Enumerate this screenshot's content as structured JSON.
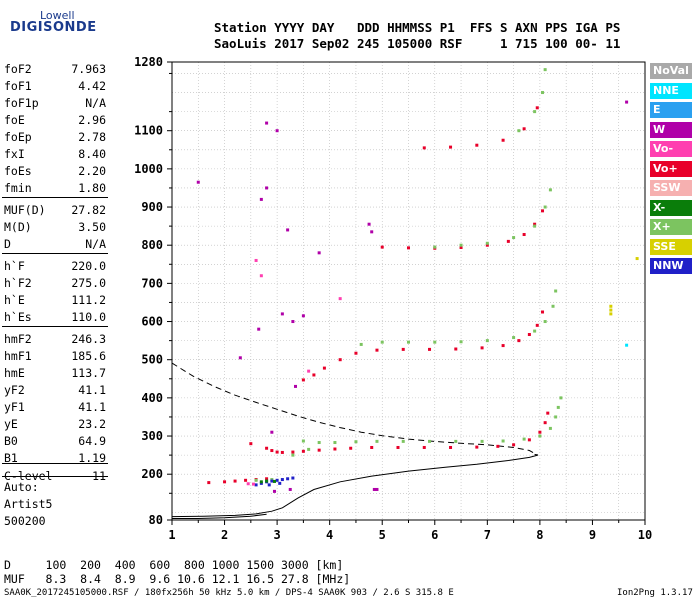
{
  "logo": {
    "lowell": "Lowell",
    "digisonde": "DIGISONDE"
  },
  "header": {
    "line1": "Station YYYY DAY   DDD HHMMSS P1  FFS S AXN PPS IGA PS",
    "line2": "SaoLuis 2017 Sep02 245 105000 RSF     1 715 100 00- 11"
  },
  "params": [
    {
      "name": "foF2",
      "value": "7.963"
    },
    {
      "name": "foF1",
      "value": "4.42"
    },
    {
      "name": "foF1p",
      "value": "N/A"
    },
    {
      "name": "foE",
      "value": "2.96"
    },
    {
      "name": "foEp",
      "value": "2.78"
    },
    {
      "name": "fxI",
      "value": "8.40"
    },
    {
      "name": "foEs",
      "value": "2.20"
    },
    {
      "name": "fmin",
      "value": "1.80"
    },
    {
      "name": "MUF(D)",
      "value": "27.82"
    },
    {
      "name": "M(D)",
      "value": "3.50"
    },
    {
      "name": "D",
      "value": "N/A"
    },
    {
      "name": "h`F",
      "value": "220.0"
    },
    {
      "name": "h`F2",
      "value": "275.0"
    },
    {
      "name": "h`E",
      "value": "111.2"
    },
    {
      "name": "h`Es",
      "value": "110.0"
    },
    {
      "name": "hmF2",
      "value": "246.3"
    },
    {
      "name": "hmF1",
      "value": "185.6"
    },
    {
      "name": "hmE",
      "value": "113.7"
    },
    {
      "name": "yF2",
      "value": "41.1"
    },
    {
      "name": "yF1",
      "value": "41.1"
    },
    {
      "name": "yE",
      "value": "23.2"
    },
    {
      "name": "B0",
      "value": "64.9"
    },
    {
      "name": "B1",
      "value": "1.19"
    },
    {
      "name": "C-level",
      "value": "11"
    }
  ],
  "auto": {
    "label": "Auto:",
    "artist": "Artist5",
    "version": "500200"
  },
  "legend": [
    {
      "label": "NoVal",
      "color": "#a9a9a9"
    },
    {
      "label": "NNE",
      "color": "#00e5ff"
    },
    {
      "label": "E",
      "color": "#2aa0f0"
    },
    {
      "label": "W",
      "color": "#b000a8"
    },
    {
      "label": "Vo-",
      "color": "#ff3fb0"
    },
    {
      "label": "Vo+",
      "color": "#e8002a"
    },
    {
      "label": "SSW",
      "color": "#f6b0b0"
    },
    {
      "label": "X-",
      "color": "#0a7d0a"
    },
    {
      "label": "X+",
      "color": "#7cc460"
    },
    {
      "label": "SSE",
      "color": "#d7d000"
    },
    {
      "label": "NNW",
      "color": "#2020c8"
    }
  ],
  "muf_table": {
    "row_d": "D     100  200  400  600  800 1000 1500 3000 [km]",
    "row_muf": "MUF   8.3  8.4  8.9  9.6 10.6 12.1 16.5 27.8 [MHz]"
  },
  "footer": {
    "left": "SAA0K_2017245105000.RSF / 180fx256h 50 kHz 5.0 km / DPS-4 SAA0K 903 / 2.6 S 315.8 E",
    "right": "Ion2Png 1.3.17"
  },
  "chart_data": {
    "type": "scatter",
    "xlabel": "",
    "ylabel": "",
    "xlim": [
      1,
      10
    ],
    "ylim": [
      80,
      1280
    ],
    "xticks": [
      "1",
      "2",
      "3",
      "4",
      "5",
      "6",
      "7",
      "8",
      "9",
      "10"
    ],
    "yticks": [
      "80",
      "200",
      "300",
      "400",
      "500",
      "600",
      "700",
      "800",
      "900",
      "1000",
      "1100",
      "1280"
    ],
    "grid": true,
    "legend_position": "right",
    "series": [
      {
        "name": "Vo+",
        "color": "#e8002a",
        "points": [
          [
            2.5,
            280
          ],
          [
            2.8,
            268
          ],
          [
            2.9,
            262
          ],
          [
            3.0,
            258
          ],
          [
            3.1,
            257
          ],
          [
            3.3,
            258
          ],
          [
            3.5,
            260
          ],
          [
            3.8,
            263
          ],
          [
            4.1,
            266
          ],
          [
            4.4,
            268
          ],
          [
            4.8,
            270
          ],
          [
            5.3,
            270
          ],
          [
            5.8,
            270
          ],
          [
            6.3,
            270
          ],
          [
            6.8,
            271
          ],
          [
            7.2,
            273
          ],
          [
            7.5,
            277
          ],
          [
            7.8,
            290
          ],
          [
            8.0,
            310
          ],
          [
            8.1,
            335
          ],
          [
            8.15,
            360
          ],
          [
            3.5,
            447
          ],
          [
            3.7,
            460
          ],
          [
            3.9,
            478
          ],
          [
            4.2,
            500
          ],
          [
            4.5,
            517
          ],
          [
            4.9,
            525
          ],
          [
            5.4,
            527
          ],
          [
            5.9,
            527
          ],
          [
            6.4,
            528
          ],
          [
            6.9,
            531
          ],
          [
            7.3,
            537
          ],
          [
            7.6,
            550
          ],
          [
            7.8,
            566
          ],
          [
            7.95,
            590
          ],
          [
            8.05,
            625
          ],
          [
            5.0,
            795
          ],
          [
            5.5,
            793
          ],
          [
            6.0,
            792
          ],
          [
            6.5,
            794
          ],
          [
            7.0,
            800
          ],
          [
            7.4,
            810
          ],
          [
            7.7,
            828
          ],
          [
            7.9,
            855
          ],
          [
            8.05,
            890
          ],
          [
            5.8,
            1055
          ],
          [
            6.3,
            1057
          ],
          [
            6.8,
            1062
          ],
          [
            7.3,
            1075
          ],
          [
            7.7,
            1105
          ],
          [
            7.95,
            1160
          ],
          [
            2.0,
            180
          ],
          [
            2.2,
            182
          ],
          [
            2.4,
            184
          ],
          [
            2.6,
            186
          ],
          [
            2.8,
            188
          ],
          [
            1.7,
            178
          ]
        ]
      },
      {
        "name": "X+",
        "color": "#7cc460",
        "points": [
          [
            3.5,
            287
          ],
          [
            3.8,
            283
          ],
          [
            4.1,
            283
          ],
          [
            4.5,
            285
          ],
          [
            4.9,
            286
          ],
          [
            5.4,
            286
          ],
          [
            5.9,
            286
          ],
          [
            6.4,
            286
          ],
          [
            6.9,
            286
          ],
          [
            7.3,
            287
          ],
          [
            7.7,
            292
          ],
          [
            8.0,
            300
          ],
          [
            8.2,
            320
          ],
          [
            8.3,
            350
          ],
          [
            8.35,
            375
          ],
          [
            8.4,
            400
          ],
          [
            4.6,
            540
          ],
          [
            5.0,
            546
          ],
          [
            5.5,
            546
          ],
          [
            6.0,
            546
          ],
          [
            6.5,
            547
          ],
          [
            7.0,
            550
          ],
          [
            7.5,
            558
          ],
          [
            7.9,
            575
          ],
          [
            8.1,
            600
          ],
          [
            8.25,
            640
          ],
          [
            8.3,
            680
          ],
          [
            6.0,
            795
          ],
          [
            6.5,
            800
          ],
          [
            7.0,
            805
          ],
          [
            7.5,
            820
          ],
          [
            7.9,
            850
          ],
          [
            8.1,
            900
          ],
          [
            8.2,
            945
          ],
          [
            7.6,
            1100
          ],
          [
            7.9,
            1150
          ],
          [
            8.05,
            1200
          ],
          [
            8.1,
            1260
          ],
          [
            2.6,
            184
          ],
          [
            2.9,
            186
          ],
          [
            3.3,
            250
          ],
          [
            3.6,
            265
          ]
        ]
      },
      {
        "name": "W",
        "color": "#b000a8",
        "points": [
          [
            2.8,
            1120
          ],
          [
            3.0,
            1100
          ],
          [
            3.2,
            840
          ],
          [
            2.7,
            920
          ],
          [
            2.8,
            950
          ],
          [
            1.5,
            965
          ],
          [
            3.35,
            430
          ],
          [
            3.5,
            615
          ],
          [
            2.3,
            505
          ],
          [
            3.1,
            620
          ],
          [
            3.3,
            600
          ],
          [
            2.65,
            580
          ],
          [
            3.8,
            780
          ],
          [
            9.65,
            1175
          ],
          [
            4.75,
            855
          ],
          [
            4.8,
            835
          ],
          [
            4.85,
            160
          ],
          [
            4.9,
            160
          ],
          [
            3.25,
            160
          ],
          [
            2.95,
            155
          ],
          [
            2.9,
            310
          ]
        ]
      },
      {
        "name": "NNW",
        "color": "#2020c8",
        "points": [
          [
            2.6,
            172
          ],
          [
            2.7,
            176
          ],
          [
            2.8,
            180
          ],
          [
            2.9,
            182
          ],
          [
            3.0,
            184
          ],
          [
            3.1,
            186
          ],
          [
            3.2,
            188
          ],
          [
            3.3,
            190
          ],
          [
            2.85,
            172
          ],
          [
            3.05,
            176
          ]
        ]
      },
      {
        "name": "Vo-",
        "color": "#ff3fb0",
        "points": [
          [
            2.7,
            720
          ],
          [
            2.6,
            760
          ],
          [
            4.2,
            660
          ],
          [
            3.6,
            470
          ],
          [
            2.45,
            175
          ],
          [
            2.55,
            174
          ]
        ]
      },
      {
        "name": "SSE",
        "color": "#d7d000",
        "points": [
          [
            9.35,
            620
          ],
          [
            9.35,
            630
          ],
          [
            9.35,
            640
          ],
          [
            9.85,
            765
          ]
        ]
      },
      {
        "name": "NNE",
        "color": "#00e5ff",
        "points": [
          [
            9.65,
            538
          ]
        ]
      },
      {
        "name": "X-",
        "color": "#0a7d0a",
        "points": [
          [
            2.7,
            180
          ],
          [
            2.8,
            182
          ],
          [
            2.95,
            181
          ]
        ]
      }
    ],
    "profile_lines": [
      {
        "name": "virtual-height-fit",
        "style": "solid",
        "points": [
          [
            1.0,
            89
          ],
          [
            1.6,
            90
          ],
          [
            2.2,
            92
          ],
          [
            2.6,
            96
          ],
          [
            2.9,
            103
          ],
          [
            3.1,
            112
          ],
          [
            3.4,
            138
          ],
          [
            3.7,
            160
          ],
          [
            4.2,
            180
          ],
          [
            4.8,
            195
          ],
          [
            5.5,
            208
          ],
          [
            6.2,
            218
          ],
          [
            6.8,
            226
          ],
          [
            7.4,
            236
          ],
          [
            7.8,
            244
          ],
          [
            7.96,
            250
          ],
          [
            7.9,
            252
          ]
        ]
      },
      {
        "name": "virtual-height-fit-base",
        "style": "solid",
        "points": [
          [
            1.0,
            84
          ],
          [
            1.5,
            84
          ],
          [
            2.0,
            86
          ],
          [
            2.5,
            90
          ],
          [
            2.8,
            95
          ]
        ]
      },
      {
        "name": "true-height-profile",
        "style": "dashed",
        "points": [
          [
            1.0,
            491
          ],
          [
            1.4,
            457
          ],
          [
            1.8,
            430
          ],
          [
            2.2,
            407
          ],
          [
            2.6,
            388
          ],
          [
            3.0,
            370
          ],
          [
            3.4,
            352
          ],
          [
            3.8,
            336
          ],
          [
            4.2,
            322
          ],
          [
            4.6,
            310
          ],
          [
            5.0,
            301
          ],
          [
            5.5,
            292
          ],
          [
            6.0,
            286
          ],
          [
            6.5,
            281
          ],
          [
            7.0,
            277
          ],
          [
            7.5,
            270
          ],
          [
            7.8,
            262
          ],
          [
            7.96,
            250
          ]
        ]
      }
    ]
  }
}
